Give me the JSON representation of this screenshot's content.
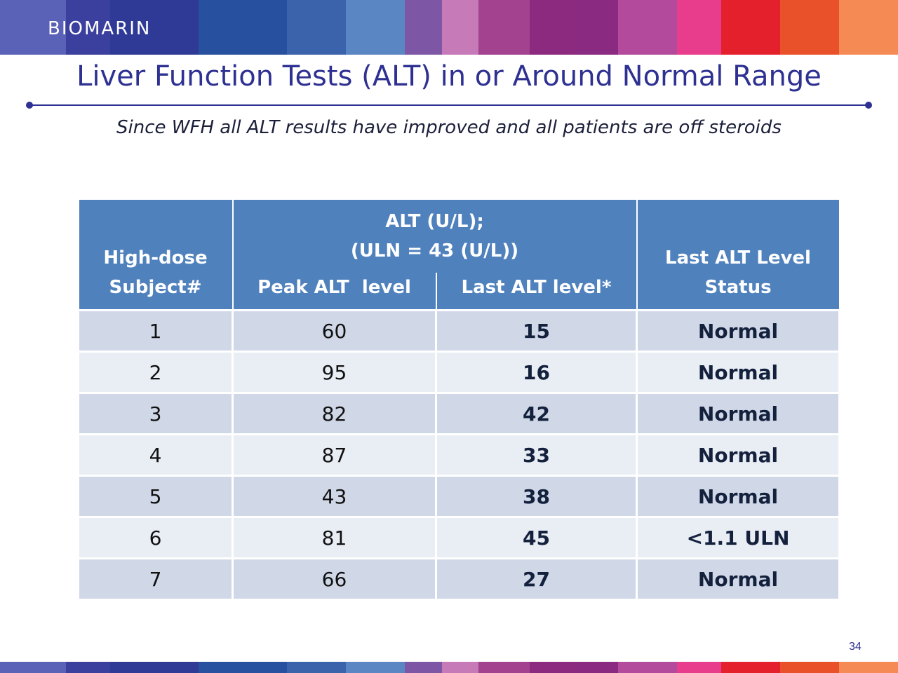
{
  "brand": {
    "logo_text": "BIOMARIN"
  },
  "slide": {
    "title": "Liver Function Tests (ALT) in or Around Normal Range",
    "subtitle": "Since WFH all ALT results have improved and all patients are off steroids",
    "page_number": "34"
  },
  "table": {
    "header": {
      "subject_line1": "High-dose",
      "subject_line2": "Subject#",
      "alt_line1": "ALT (U/L);",
      "alt_line2": "(ULN = 43 (U/L))",
      "peak": "Peak ALT  level",
      "last": "Last ALT level*",
      "status_line1": "Last ALT Level",
      "status_line2": "Status"
    },
    "rows": [
      {
        "subject": "1",
        "peak": "60",
        "last": "15",
        "status": "Normal"
      },
      {
        "subject": "2",
        "peak": "95",
        "last": "16",
        "status": "Normal"
      },
      {
        "subject": "3",
        "peak": "82",
        "last": "42",
        "status": "Normal"
      },
      {
        "subject": "4",
        "peak": "87",
        "last": "33",
        "status": "Normal"
      },
      {
        "subject": "5",
        "peak": "43",
        "last": "38",
        "status": "Normal"
      },
      {
        "subject": "6",
        "peak": "81",
        "last": "45",
        "status": "<1.1 ULN"
      },
      {
        "subject": "7",
        "peak": "66",
        "last": "27",
        "status": "Normal"
      }
    ]
  },
  "colors": {
    "title": "#2e3192",
    "header_bg": "#4f81bd",
    "row_odd": "#d0d8e8",
    "row_even": "#e9edf4",
    "stripes": [
      "#5a62b8",
      "#3b3f9e",
      "#2e3a96",
      "#27519e",
      "#3a63ab",
      "#5a86c4",
      "#7e56a6",
      "#c77ab8",
      "#a3428f",
      "#8c2a7f",
      "#8a2a80",
      "#b34a9c",
      "#e83c8c",
      "#e4202d",
      "#e9512a",
      "#f58a55"
    ]
  }
}
